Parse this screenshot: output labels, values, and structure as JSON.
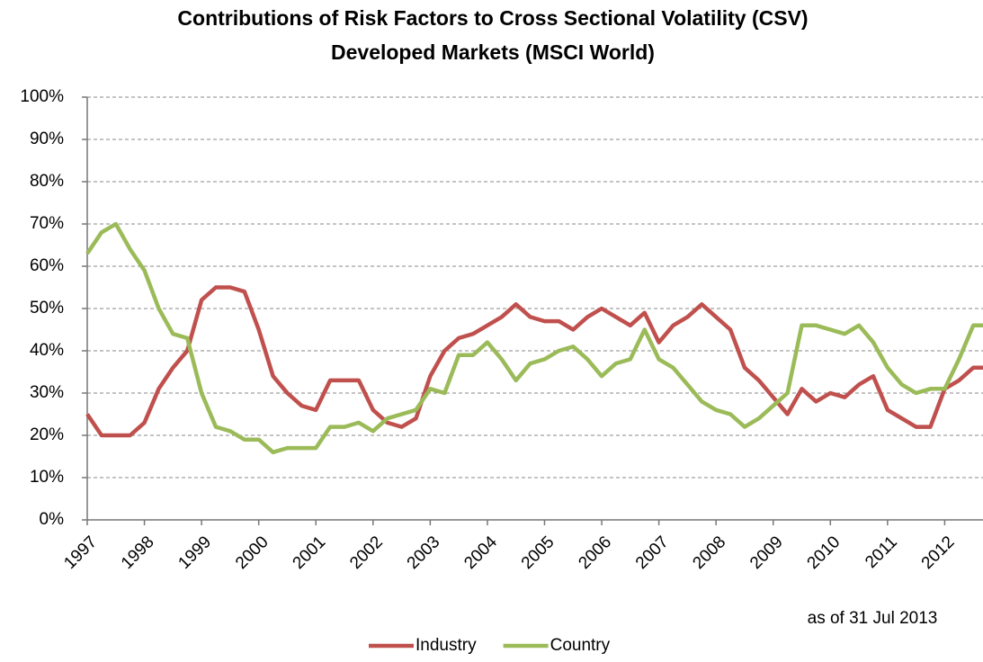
{
  "chart_data": {
    "type": "line",
    "title": "Contributions of Risk Factors to Cross Sectional Volatility (CSV)",
    "subtitle": "Developed Markets (MSCI World)",
    "annotation": "as of 31 Jul 2013",
    "x": [
      1997.0,
      1997.25,
      1997.5,
      1997.75,
      1998.0,
      1998.25,
      1998.5,
      1998.75,
      1999.0,
      1999.25,
      1999.5,
      1999.75,
      2000.0,
      2000.25,
      2000.5,
      2000.75,
      2001.0,
      2001.25,
      2001.5,
      2001.75,
      2002.0,
      2002.25,
      2002.5,
      2002.75,
      2003.0,
      2003.25,
      2003.5,
      2003.75,
      2004.0,
      2004.25,
      2004.5,
      2004.75,
      2005.0,
      2005.25,
      2005.5,
      2005.75,
      2006.0,
      2006.25,
      2006.5,
      2006.75,
      2007.0,
      2007.25,
      2007.5,
      2007.75,
      2008.0,
      2008.25,
      2008.5,
      2008.75,
      2009.0,
      2009.25,
      2009.5,
      2009.75,
      2010.0,
      2010.25,
      2010.5,
      2010.75,
      2011.0,
      2011.25,
      2011.5,
      2011.75,
      2012.0,
      2012.25,
      2012.5,
      2012.67
    ],
    "series": [
      {
        "name": "Industry",
        "color": "#c0504d",
        "values": [
          25,
          20,
          20,
          20,
          23,
          31,
          36,
          40,
          52,
          55,
          55,
          54,
          45,
          34,
          30,
          27,
          26,
          33,
          33,
          33,
          26,
          23,
          22,
          24,
          34,
          40,
          43,
          44,
          46,
          48,
          51,
          48,
          47,
          47,
          45,
          48,
          50,
          48,
          46,
          49,
          42,
          46,
          48,
          51,
          48,
          45,
          36,
          33,
          29,
          25,
          31,
          28,
          30,
          29,
          32,
          34,
          26,
          24,
          22,
          22,
          31,
          33,
          36,
          36
        ]
      },
      {
        "name": "Country",
        "color": "#9bbb59",
        "values": [
          63,
          68,
          70,
          64,
          59,
          50,
          44,
          43,
          30,
          22,
          21,
          19,
          19,
          16,
          17,
          17,
          17,
          22,
          22,
          23,
          21,
          24,
          25,
          26,
          31,
          30,
          39,
          39,
          42,
          38,
          33,
          37,
          38,
          40,
          41,
          38,
          34,
          37,
          38,
          45,
          38,
          36,
          32,
          28,
          26,
          25,
          22,
          24,
          27,
          30,
          46,
          46,
          45,
          44,
          46,
          42,
          36,
          32,
          30,
          31,
          31,
          38,
          46,
          46
        ]
      }
    ],
    "xlim": [
      1997,
      2012.67
    ],
    "xticks": [
      1997,
      1998,
      1999,
      2000,
      2001,
      2002,
      2003,
      2004,
      2005,
      2006,
      2007,
      2008,
      2009,
      2010,
      2011,
      2012
    ],
    "ylim": [
      0,
      100
    ],
    "yticks": [
      {
        "value": 0,
        "label": "0%"
      },
      {
        "value": 10,
        "label": "10%"
      },
      {
        "value": 20,
        "label": "20%"
      },
      {
        "value": 30,
        "label": "30%"
      },
      {
        "value": 40,
        "label": "40%"
      },
      {
        "value": 50,
        "label": "50%"
      },
      {
        "value": 60,
        "label": "60%"
      },
      {
        "value": 70,
        "label": "70%"
      },
      {
        "value": 80,
        "label": "80%"
      },
      {
        "value": 90,
        "label": "90%"
      },
      {
        "value": 100,
        "label": "100%"
      }
    ],
    "grid": true,
    "legend": "bottom"
  }
}
